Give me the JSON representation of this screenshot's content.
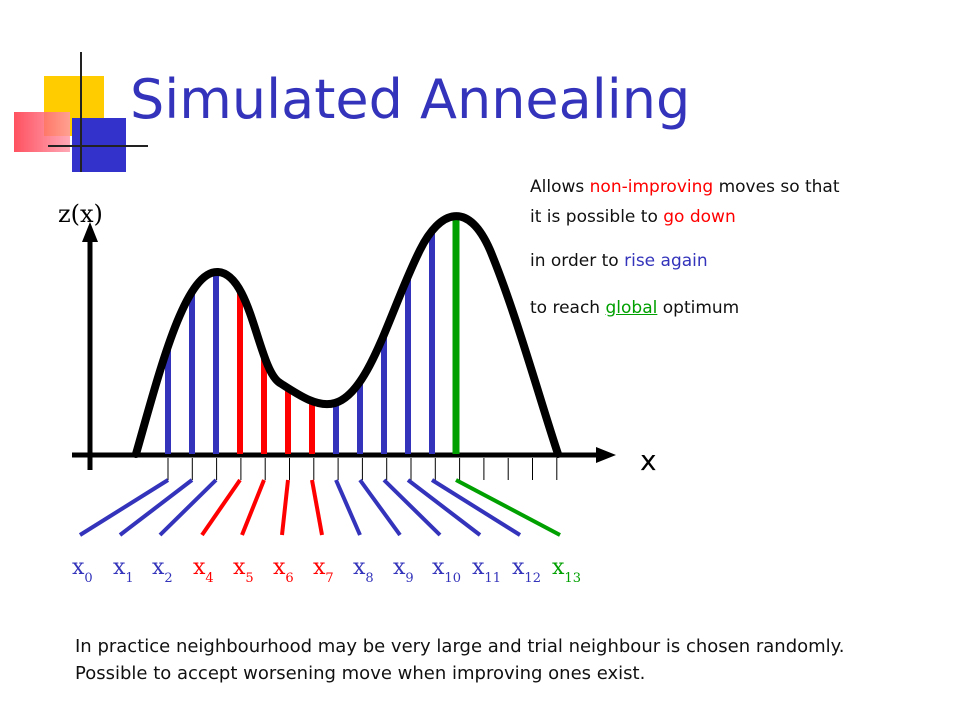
{
  "title": "Simulated Annealing",
  "notes": {
    "line1": {
      "a": "Allows ",
      "b": "non-improving",
      "c": " moves so that"
    },
    "line2": {
      "a": "it is possible to ",
      "b": "go down"
    },
    "line3": {
      "a": "in order to ",
      "b": "rise again"
    },
    "line4": {
      "a": "to reach ",
      "b": "global",
      "c": " optimum"
    }
  },
  "axis": {
    "y_label": "z(x)",
    "x_label": "x"
  },
  "colors": {
    "blue": "#3333bb",
    "red": "#ff0000",
    "green": "#00a000",
    "curve": "#000000"
  },
  "x_labels": [
    {
      "base": "x",
      "sub": "0",
      "color": "#3333bb"
    },
    {
      "base": "x",
      "sub": "1",
      "color": "#3333bb"
    },
    {
      "base": "x",
      "sub": "2",
      "color": "#3333bb"
    },
    {
      "base": "x",
      "sub": "4",
      "color": "#ff0000"
    },
    {
      "base": "x",
      "sub": "5",
      "color": "#ff0000"
    },
    {
      "base": "x",
      "sub": "6",
      "color": "#ff0000"
    },
    {
      "base": "x",
      "sub": "7",
      "color": "#ff0000"
    },
    {
      "base": "x",
      "sub": "8",
      "color": "#3333bb"
    },
    {
      "base": "x",
      "sub": "9",
      "color": "#3333bb"
    },
    {
      "base": "x",
      "sub": "10",
      "color": "#3333bb"
    },
    {
      "base": "x",
      "sub": "11",
      "color": "#3333bb"
    },
    {
      "base": "x",
      "sub": "12",
      "color": "#3333bb"
    },
    {
      "base": "x",
      "sub": "13",
      "color": "#00a000"
    }
  ],
  "footer": "In practice neighbourhood may be very large and trial neighbour is chosen randomly. Possible to accept worsening move when improving ones exist."
}
